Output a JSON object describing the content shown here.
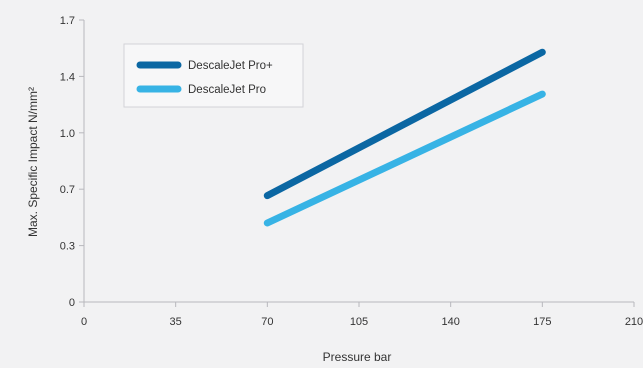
{
  "chart_data": {
    "type": "line",
    "title": "",
    "xlabel": "Pressure bar",
    "ylabel": "Max. Specific Impact N/mm²",
    "xlim": [
      0,
      210
    ],
    "ylim": [
      0,
      1.75
    ],
    "x_ticks": [
      0,
      35,
      70,
      105,
      140,
      175,
      210
    ],
    "x_tick_labels": [
      "0",
      "35",
      "70",
      "105",
      "140",
      "175",
      "210"
    ],
    "y_ticks": [
      0,
      0.35,
      0.7,
      1.05,
      1.4,
      1.75
    ],
    "y_tick_labels": [
      "0",
      "0.3",
      "0.7",
      "1.0",
      "1.4",
      "1.7"
    ],
    "grid": false,
    "legend_position": "top-left",
    "series": [
      {
        "name": "DescaleJet Pro+",
        "color": "#0b67a3",
        "x": [
          70,
          175
        ],
        "y": [
          0.66,
          1.55
        ]
      },
      {
        "name": "DescaleJet Pro",
        "color": "#37b3e5",
        "x": [
          70,
          175
        ],
        "y": [
          0.49,
          1.29
        ]
      }
    ]
  }
}
